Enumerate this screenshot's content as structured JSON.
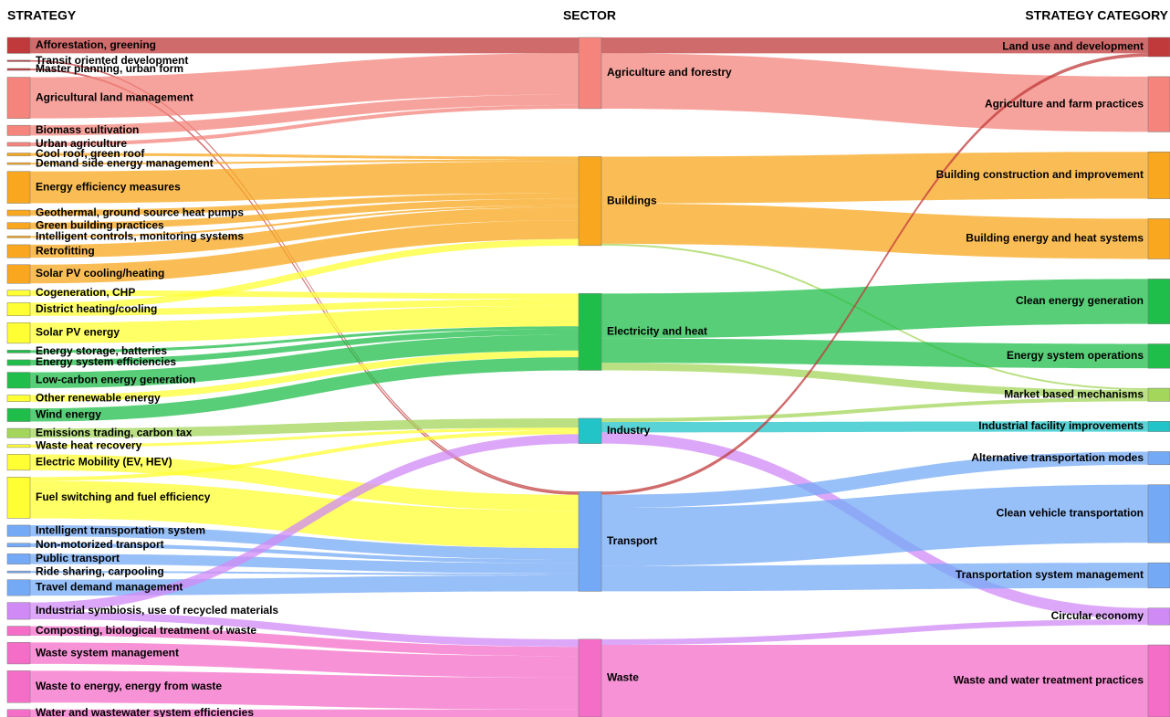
{
  "chart_data": {
    "type": "sankey",
    "columns": [
      "STRATEGY",
      "SECTOR",
      "STRATEGY CATEGORY"
    ],
    "nodes": [
      {
        "name": "Afforestation, greening",
        "column": 0,
        "color": "#c0393b"
      },
      {
        "name": "Transit oriented development",
        "column": 0,
        "color": "#c0393b"
      },
      {
        "name": "Master planning, urban form",
        "column": 0,
        "color": "#c0393b"
      },
      {
        "name": "Agricultural land management",
        "column": 0,
        "color": "#f4847c"
      },
      {
        "name": "Biomass cultivation",
        "column": 0,
        "color": "#f4847c"
      },
      {
        "name": "Urban agriculture",
        "column": 0,
        "color": "#f4847c"
      },
      {
        "name": "Cool roof, green roof",
        "column": 0,
        "color": "#f8a71e"
      },
      {
        "name": "Demand side energy management",
        "column": 0,
        "color": "#f8a71e"
      },
      {
        "name": "Energy efficiency measures",
        "column": 0,
        "color": "#f8a71e"
      },
      {
        "name": "Geothermal, ground source heat pumps",
        "column": 0,
        "color": "#f8a71e"
      },
      {
        "name": "Green building practices",
        "column": 0,
        "color": "#f8a71e"
      },
      {
        "name": "Intelligent controls, monitoring systems",
        "column": 0,
        "color": "#f8a71e"
      },
      {
        "name": "Retrofitting",
        "column": 0,
        "color": "#f8a71e"
      },
      {
        "name": "Solar PV cooling/heating",
        "column": 0,
        "color": "#f8a71e"
      },
      {
        "name": "Cogeneration, CHP",
        "column": 0,
        "color": "#ffff33"
      },
      {
        "name": "District heating/cooling",
        "column": 0,
        "color": "#ffff33"
      },
      {
        "name": "Solar PV energy",
        "column": 0,
        "color": "#ffff33"
      },
      {
        "name": "Energy storage, batteries",
        "column": 0,
        "color": "#1fbe4a"
      },
      {
        "name": "Energy system efficiencies",
        "column": 0,
        "color": "#1fbe4a"
      },
      {
        "name": "Low-carbon energy generation",
        "column": 0,
        "color": "#1fbe4a"
      },
      {
        "name": "Other renewable energy",
        "column": 0,
        "color": "#ffff33"
      },
      {
        "name": "Wind energy",
        "column": 0,
        "color": "#1fbe4a"
      },
      {
        "name": "Emissions trading, carbon tax",
        "column": 0,
        "color": "#a3d65a"
      },
      {
        "name": "Waste heat recovery",
        "column": 0,
        "color": "#ffff33"
      },
      {
        "name": "Electric Mobility (EV, HEV)",
        "column": 0,
        "color": "#ffff33"
      },
      {
        "name": "Fuel switching and fuel efficiency",
        "column": 0,
        "color": "#ffff33"
      },
      {
        "name": "Intelligent transportation system",
        "column": 0,
        "color": "#74a9f5"
      },
      {
        "name": "Non-motorized transport",
        "column": 0,
        "color": "#74a9f5"
      },
      {
        "name": "Public transport",
        "column": 0,
        "color": "#74a9f5"
      },
      {
        "name": "Ride sharing, carpooling",
        "column": 0,
        "color": "#74a9f5"
      },
      {
        "name": "Travel demand management",
        "column": 0,
        "color": "#74a9f5"
      },
      {
        "name": "Industrial symbiosis, use of recycled materials",
        "column": 0,
        "color": "#d08af5"
      },
      {
        "name": "Composting, biological treatment of waste",
        "column": 0,
        "color": "#f46ec8"
      },
      {
        "name": "Waste system management",
        "column": 0,
        "color": "#f46ec8"
      },
      {
        "name": "Waste to energy, energy from waste",
        "column": 0,
        "color": "#f46ec8"
      },
      {
        "name": "Water and wastewater system efficiencies",
        "column": 0,
        "color": "#f46ec8"
      },
      {
        "name": "Agriculture and forestry",
        "column": 1,
        "color": "#f4847c"
      },
      {
        "name": "Buildings",
        "column": 1,
        "color": "#f8a71e"
      },
      {
        "name": "Electricity and heat",
        "column": 1,
        "color": "#1fbe4a"
      },
      {
        "name": "Industry",
        "column": 1,
        "color": "#22c4c8"
      },
      {
        "name": "Transport",
        "column": 1,
        "color": "#74a9f5"
      },
      {
        "name": "Waste",
        "column": 1,
        "color": "#f46ec8"
      },
      {
        "name": "Land use and development",
        "column": 2,
        "color": "#c0393b"
      },
      {
        "name": "Agriculture and farm practices",
        "column": 2,
        "color": "#f4847c"
      },
      {
        "name": "Building construction and improvement",
        "column": 2,
        "color": "#f8a71e"
      },
      {
        "name": "Building energy and heat systems",
        "column": 2,
        "color": "#f8a71e"
      },
      {
        "name": "Clean energy generation",
        "column": 2,
        "color": "#1fbe4a"
      },
      {
        "name": "Energy system operations",
        "column": 2,
        "color": "#1fbe4a"
      },
      {
        "name": "Market based mechanisms",
        "column": 2,
        "color": "#a3d65a"
      },
      {
        "name": "Industrial facility improvements",
        "column": 2,
        "color": "#22c4c8"
      },
      {
        "name": "Alternative transportation modes",
        "column": 2,
        "color": "#74a9f5"
      },
      {
        "name": "Clean vehicle transportation",
        "column": 2,
        "color": "#74a9f5"
      },
      {
        "name": "Transportation system management",
        "column": 2,
        "color": "#74a9f5"
      },
      {
        "name": "Circular economy",
        "column": 2,
        "color": "#d08af5"
      },
      {
        "name": "Waste and water treatment practices",
        "column": 2,
        "color": "#f46ec8"
      }
    ],
    "links": [
      {
        "source": 0,
        "target": 36,
        "value": 17
      },
      {
        "source": 1,
        "target": 40,
        "value": 1.5
      },
      {
        "source": 2,
        "target": 40,
        "value": 2
      },
      {
        "source": 3,
        "target": 36,
        "value": 44
      },
      {
        "source": 4,
        "target": 36,
        "value": 11
      },
      {
        "source": 5,
        "target": 36,
        "value": 4
      },
      {
        "source": 6,
        "target": 37,
        "value": 3
      },
      {
        "source": 7,
        "target": 37,
        "value": 2
      },
      {
        "source": 8,
        "target": 37,
        "value": 34
      },
      {
        "source": 9,
        "target": 37,
        "value": 6
      },
      {
        "source": 10,
        "target": 37,
        "value": 7
      },
      {
        "source": 11,
        "target": 37,
        "value": 2
      },
      {
        "source": 12,
        "target": 37,
        "value": 14
      },
      {
        "source": 13,
        "target": 37,
        "value": 20
      },
      {
        "source": 14,
        "target": 38,
        "value": 6
      },
      {
        "source": 15,
        "target": 37,
        "value": 7
      },
      {
        "source": 15,
        "target": 38,
        "value": 7
      },
      {
        "source": 16,
        "target": 38,
        "value": 22
      },
      {
        "source": 17,
        "target": 38,
        "value": 3
      },
      {
        "source": 18,
        "target": 38,
        "value": 6
      },
      {
        "source": 19,
        "target": 38,
        "value": 17
      },
      {
        "source": 20,
        "target": 38,
        "value": 7
      },
      {
        "source": 21,
        "target": 38,
        "value": 14
      },
      {
        "source": 22,
        "target": 39,
        "value": 10
      },
      {
        "source": 23,
        "target": 39,
        "value": 3
      },
      {
        "source": 24,
        "target": 40,
        "value": 17
      },
      {
        "source": 25,
        "target": 40,
        "value": 40
      },
      {
        "source": 25,
        "target": 39,
        "value": 4
      },
      {
        "source": 26,
        "target": 40,
        "value": 12
      },
      {
        "source": 27,
        "target": 40,
        "value": 4
      },
      {
        "source": 28,
        "target": 40,
        "value": 11
      },
      {
        "source": 29,
        "target": 40,
        "value": 2
      },
      {
        "source": 30,
        "target": 40,
        "value": 17
      },
      {
        "source": 31,
        "target": 39,
        "value": 10
      },
      {
        "source": 31,
        "target": 41,
        "value": 8
      },
      {
        "source": 32,
        "target": 41,
        "value": 10
      },
      {
        "source": 33,
        "target": 41,
        "value": 23
      },
      {
        "source": 34,
        "target": 41,
        "value": 34
      },
      {
        "source": 35,
        "target": 41,
        "value": 8
      },
      {
        "source": 36,
        "target": 42,
        "value": 17
      },
      {
        "source": 36,
        "target": 43,
        "value": 59
      },
      {
        "source": 37,
        "target": 44,
        "value": 50
      },
      {
        "source": 37,
        "target": 45,
        "value": 43
      },
      {
        "source": 37,
        "target": 48,
        "value": 2
      },
      {
        "source": 38,
        "target": 46,
        "value": 48
      },
      {
        "source": 38,
        "target": 47,
        "value": 26
      },
      {
        "source": 38,
        "target": 48,
        "value": 8
      },
      {
        "source": 39,
        "target": 48,
        "value": 4
      },
      {
        "source": 39,
        "target": 49,
        "value": 11
      },
      {
        "source": 39,
        "target": 53,
        "value": 12
      },
      {
        "source": 40,
        "target": 42,
        "value": 3.5
      },
      {
        "source": 40,
        "target": 50,
        "value": 14
      },
      {
        "source": 40,
        "target": 51,
        "value": 62
      },
      {
        "source": 40,
        "target": 52,
        "value": 27
      },
      {
        "source": 41,
        "target": 53,
        "value": 6
      },
      {
        "source": 41,
        "target": 54,
        "value": 77
      }
    ]
  }
}
